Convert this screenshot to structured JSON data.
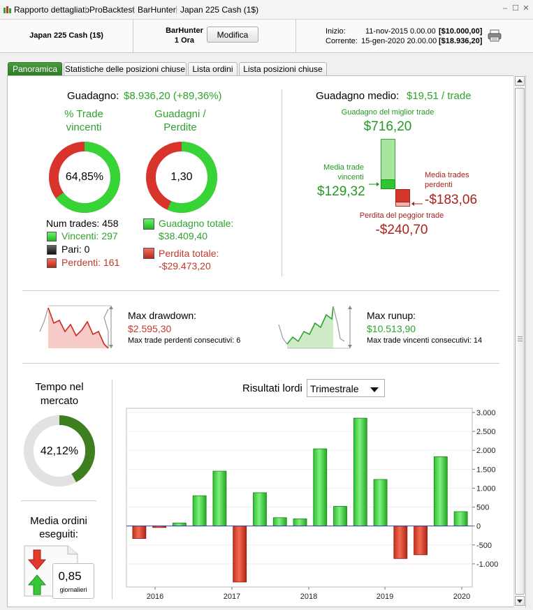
{
  "titlebar": {
    "crumbs": [
      "Rapporto dettagliato",
      "ProBacktest",
      "BarHunter",
      "Japan 225 Cash (1$)"
    ]
  },
  "header": {
    "instrument": "Japan 225 Cash (1$)",
    "strategy_name": "BarHunter",
    "timeframe": "1 Ora",
    "modify_label": "Modifica",
    "start_label": "Inizio:",
    "start_date": "11-nov-2015 0.00.00",
    "start_value": "[$10.000,00]",
    "current_label": "Corrente:",
    "current_date": "15-gen-2020 20.00.00",
    "current_value": "[$18.936,20]"
  },
  "tabs": [
    "Panoramica",
    "Statistiche delle posizioni chiuse",
    "Lista ordini",
    "Lista posizioni chiuse"
  ],
  "overview": {
    "gain_label": "Guadagno:",
    "gain_value": "$8.936,20 (+89,36%)",
    "win_pct_title_1": "% Trade",
    "win_pct_title_2": "vincenti",
    "win_pct_value": "64,85%",
    "win_pct": 64.85,
    "gl_title_1": "Guadagni /",
    "gl_title_2": "Perdite",
    "gl_value": "1,30",
    "gl_ratio": 1.3,
    "num_trades_label": "Num trades: 458",
    "winners_label": "Vincenti: 297",
    "even_label": "Pari: 0",
    "losers_label": "Perdenti: 161",
    "total_gain_label": "Guadagno totale:",
    "total_gain_value": "$38.409,40",
    "total_loss_label": "Perdita totale:",
    "total_loss_value": "-$29.473,20"
  },
  "avg": {
    "title": "Guadagno medio:",
    "value": "$19,51 / trade",
    "best_label": "Guadagno del miglior trade",
    "best_value": "$716,20",
    "avg_win_label_1": "Media trade",
    "avg_win_label_2": "vincenti",
    "avg_win_value": "$129,32",
    "avg_loss_label_1": "Media trades",
    "avg_loss_label_2": "perdenti",
    "avg_loss_value": "-$183,06",
    "worst_label": "Perdita del peggior trade",
    "worst_value": "-$240,70"
  },
  "drawdown": {
    "dd_title": "Max drawdown:",
    "dd_value": "$2.595,30",
    "dd_consec": "Max trade perdenti consecutivi:  6",
    "ru_title": "Max runup:",
    "ru_value": "$10.513,90",
    "ru_consec": "Max trade vincenti consecutivi: 14"
  },
  "market": {
    "title_1": "Tempo nel",
    "title_2": "mercato",
    "value": "42,12%",
    "pct": 42.12
  },
  "orders": {
    "title_1": "Media ordini",
    "title_2": "eseguiti:",
    "value": "0,85",
    "unit": "giornalieri"
  },
  "results": {
    "title": "Risultati lordi",
    "period": "Trimestrale"
  },
  "colors": {
    "green": "#2ea32e",
    "red": "#c0392b",
    "tab_active": "#3a8a30"
  },
  "chart_data": {
    "type": "bar",
    "title": "Risultati lordi",
    "x_tick_labels": [
      "2016",
      "2017",
      "2018",
      "2019",
      "2020"
    ],
    "categories": [
      "2015-Q4",
      "2016-Q1",
      "2016-Q2",
      "2016-Q3",
      "2016-Q4",
      "2017-Q1",
      "2017-Q2",
      "2017-Q3",
      "2017-Q4",
      "2018-Q1",
      "2018-Q2",
      "2018-Q3",
      "2018-Q4",
      "2019-Q1",
      "2019-Q2",
      "2019-Q3",
      "2019-Q4"
    ],
    "values": [
      -330,
      -40,
      80,
      800,
      1450,
      -1480,
      880,
      220,
      190,
      2040,
      520,
      2850,
      1230,
      -860,
      -760,
      1830,
      380
    ],
    "ylim": [
      -1500,
      3000
    ],
    "y_ticks": [
      3000,
      2500,
      2000,
      1500,
      1000,
      500,
      0,
      -500,
      -1000
    ],
    "y_tick_labels": [
      "3.000",
      "2.500",
      "2.000",
      "1.500",
      "1.000",
      "500",
      "0",
      "-500",
      "-1.000"
    ],
    "xlabel": "",
    "ylabel": ""
  }
}
